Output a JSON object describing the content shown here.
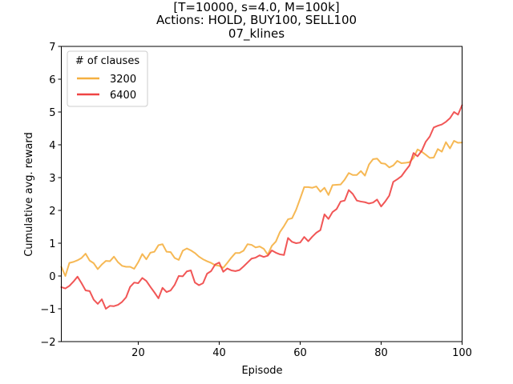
{
  "chart_data": {
    "type": "line",
    "title_lines": [
      "[T=10000, s=4.0, M=100k]",
      "Actions: HOLD, BUY100, SELL100",
      "07_klines"
    ],
    "xlabel": "Episode",
    "ylabel": "Cumulative avg. reward",
    "xlim": [
      1,
      100
    ],
    "ylim": [
      -2,
      7
    ],
    "x_ticks": [
      20,
      40,
      60,
      80,
      100
    ],
    "y_ticks": [
      -2,
      -1,
      0,
      1,
      2,
      3,
      4,
      5,
      6,
      7
    ],
    "grid": false,
    "legend": {
      "title": "# of clauses",
      "placement": "top-left"
    },
    "series": [
      {
        "name": "3200",
        "color": "#f5b041",
        "values": [
          0.28,
          0.0,
          0.4,
          0.43,
          0.48,
          0.55,
          0.68,
          0.47,
          0.39,
          0.21,
          0.35,
          0.46,
          0.45,
          0.59,
          0.42,
          0.31,
          0.28,
          0.28,
          0.22,
          0.42,
          0.67,
          0.51,
          0.71,
          0.74,
          0.94,
          0.97,
          0.74,
          0.73,
          0.55,
          0.49,
          0.77,
          0.84,
          0.78,
          0.7,
          0.59,
          0.51,
          0.45,
          0.4,
          0.33,
          0.31,
          0.25,
          0.4,
          0.56,
          0.7,
          0.7,
          0.77,
          0.97,
          0.95,
          0.87,
          0.9,
          0.83,
          0.65,
          0.92,
          1.05,
          1.34,
          1.52,
          1.73,
          1.76,
          2.02,
          2.36,
          2.71,
          2.71,
          2.69,
          2.73,
          2.57,
          2.69,
          2.47,
          2.77,
          2.78,
          2.79,
          2.94,
          3.14,
          3.08,
          3.08,
          3.2,
          3.06,
          3.4,
          3.56,
          3.58,
          3.44,
          3.42,
          3.31,
          3.37,
          3.51,
          3.44,
          3.45,
          3.47,
          3.6,
          3.86,
          3.79,
          3.7,
          3.6,
          3.61,
          3.87,
          3.79,
          4.08,
          3.89,
          4.12,
          4.06,
          4.07
        ]
      },
      {
        "name": "6400",
        "color": "#ef4444",
        "values": [
          -0.34,
          -0.38,
          -0.3,
          -0.17,
          -0.02,
          -0.22,
          -0.44,
          -0.46,
          -0.72,
          -0.85,
          -0.71,
          -1.0,
          -0.91,
          -0.92,
          -0.88,
          -0.79,
          -0.65,
          -0.33,
          -0.2,
          -0.22,
          -0.06,
          -0.15,
          -0.33,
          -0.5,
          -0.68,
          -0.36,
          -0.49,
          -0.44,
          -0.27,
          0.0,
          -0.01,
          0.14,
          0.17,
          -0.2,
          -0.28,
          -0.22,
          0.07,
          0.15,
          0.35,
          0.41,
          0.13,
          0.23,
          0.17,
          0.15,
          0.18,
          0.29,
          0.41,
          0.53,
          0.56,
          0.63,
          0.58,
          0.62,
          0.78,
          0.71,
          0.66,
          0.64,
          1.16,
          1.04,
          1.0,
          1.02,
          1.19,
          1.06,
          1.2,
          1.32,
          1.4,
          1.88,
          1.74,
          1.95,
          2.04,
          2.27,
          2.3,
          2.62,
          2.5,
          2.3,
          2.27,
          2.25,
          2.21,
          2.24,
          2.33,
          2.12,
          2.27,
          2.45,
          2.87,
          2.95,
          3.04,
          3.21,
          3.37,
          3.75,
          3.65,
          3.81,
          4.09,
          4.25,
          4.53,
          4.58,
          4.62,
          4.7,
          4.81,
          5.0,
          4.92,
          5.21
        ]
      }
    ]
  }
}
